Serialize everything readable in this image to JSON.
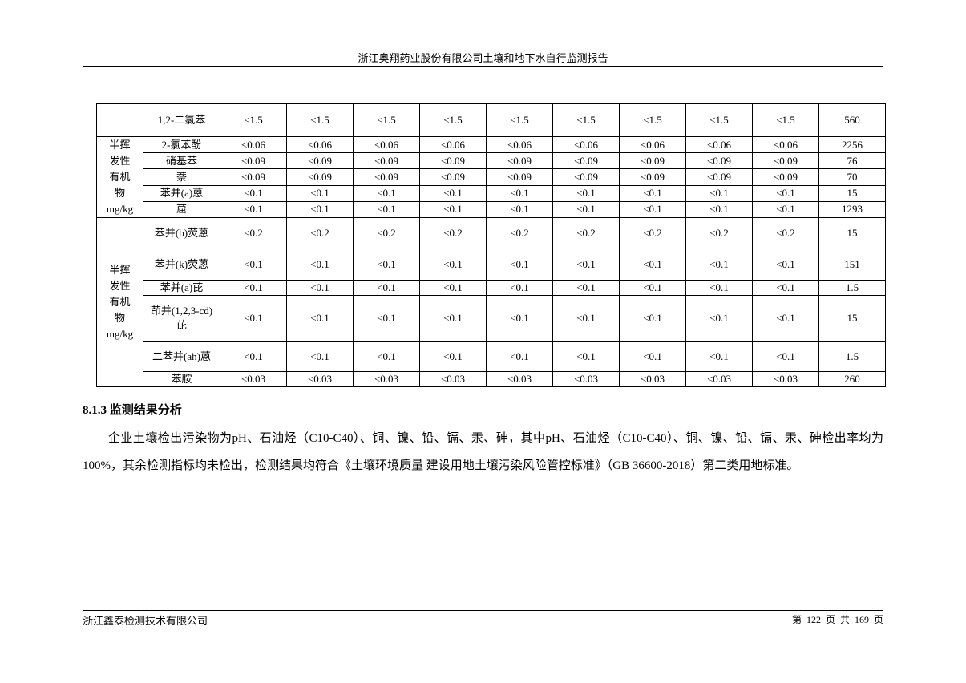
{
  "header": {
    "title": "浙江奥翔药业股份有限公司土壤和地下水自行监测报告"
  },
  "table": {
    "groups": [
      {
        "label": "",
        "rows": [
          {
            "name": "1,2-二氯苯",
            "values": [
              "<1.5",
              "<1.5",
              "<1.5",
              "<1.5",
              "<1.5",
              "<1.5",
              "<1.5",
              "<1.5",
              "<1.5"
            ],
            "standard": "560"
          }
        ]
      },
      {
        "label": "半挥发性有机物mg/kg",
        "rows": [
          {
            "name": "2-氯苯酚",
            "values": [
              "<0.06",
              "<0.06",
              "<0.06",
              "<0.06",
              "<0.06",
              "<0.06",
              "<0.06",
              "<0.06",
              "<0.06"
            ],
            "standard": "2256"
          },
          {
            "name": "硝基苯",
            "values": [
              "<0.09",
              "<0.09",
              "<0.09",
              "<0.09",
              "<0.09",
              "<0.09",
              "<0.09",
              "<0.09",
              "<0.09"
            ],
            "standard": "76"
          },
          {
            "name": "萘",
            "values": [
              "<0.09",
              "<0.09",
              "<0.09",
              "<0.09",
              "<0.09",
              "<0.09",
              "<0.09",
              "<0.09",
              "<0.09"
            ],
            "standard": "70"
          },
          {
            "name": "苯并(a)蒽",
            "values": [
              "<0.1",
              "<0.1",
              "<0.1",
              "<0.1",
              "<0.1",
              "<0.1",
              "<0.1",
              "<0.1",
              "<0.1"
            ],
            "standard": "15"
          },
          {
            "name": "䓛",
            "values": [
              "<0.1",
              "<0.1",
              "<0.1",
              "<0.1",
              "<0.1",
              "<0.1",
              "<0.1",
              "<0.1",
              "<0.1"
            ],
            "standard": "1293"
          }
        ]
      },
      {
        "label": "半挥发性有机物mg/kg",
        "rows": [
          {
            "name": "苯并(b)荧蒽",
            "values": [
              "<0.2",
              "<0.2",
              "<0.2",
              "<0.2",
              "<0.2",
              "<0.2",
              "<0.2",
              "<0.2",
              "<0.2"
            ],
            "standard": "15"
          },
          {
            "name": "苯并(k)荧蒽",
            "values": [
              "<0.1",
              "<0.1",
              "<0.1",
              "<0.1",
              "<0.1",
              "<0.1",
              "<0.1",
              "<0.1",
              "<0.1"
            ],
            "standard": "151"
          },
          {
            "name": "苯并(a)芘",
            "values": [
              "<0.1",
              "<0.1",
              "<0.1",
              "<0.1",
              "<0.1",
              "<0.1",
              "<0.1",
              "<0.1",
              "<0.1"
            ],
            "standard": "1.5"
          },
          {
            "name": "茚并(1,2,3-cd)芘",
            "values": [
              "<0.1",
              "<0.1",
              "<0.1",
              "<0.1",
              "<0.1",
              "<0.1",
              "<0.1",
              "<0.1",
              "<0.1"
            ],
            "standard": "15"
          },
          {
            "name": "二苯并(ah)蒽",
            "values": [
              "<0.1",
              "<0.1",
              "<0.1",
              "<0.1",
              "<0.1",
              "<0.1",
              "<0.1",
              "<0.1",
              "<0.1"
            ],
            "standard": "1.5"
          },
          {
            "name": "苯胺",
            "values": [
              "<0.03",
              "<0.03",
              "<0.03",
              "<0.03",
              "<0.03",
              "<0.03",
              "<0.03",
              "<0.03",
              "<0.03"
            ],
            "standard": "260"
          }
        ]
      }
    ]
  },
  "section": {
    "heading": "8.1.3 监测结果分析",
    "paragraph": "企业土壤检出污染物为pH、石油烃（C10-C40）、铜、镍、铅、镉、汞、砷，其中pH、石油烃（C10-C40）、铜、镍、铅、镉、汞、砷检出率均为100%，其余检测指标均未检出，检测结果均符合《土壤环境质量 建设用地土壤污染风险管控标准》（GB 36600-2018）第二类用地标准。"
  },
  "footer": {
    "company": "浙江鑫泰检测技术有限公司",
    "page": "第 122 页 共 169 页"
  }
}
